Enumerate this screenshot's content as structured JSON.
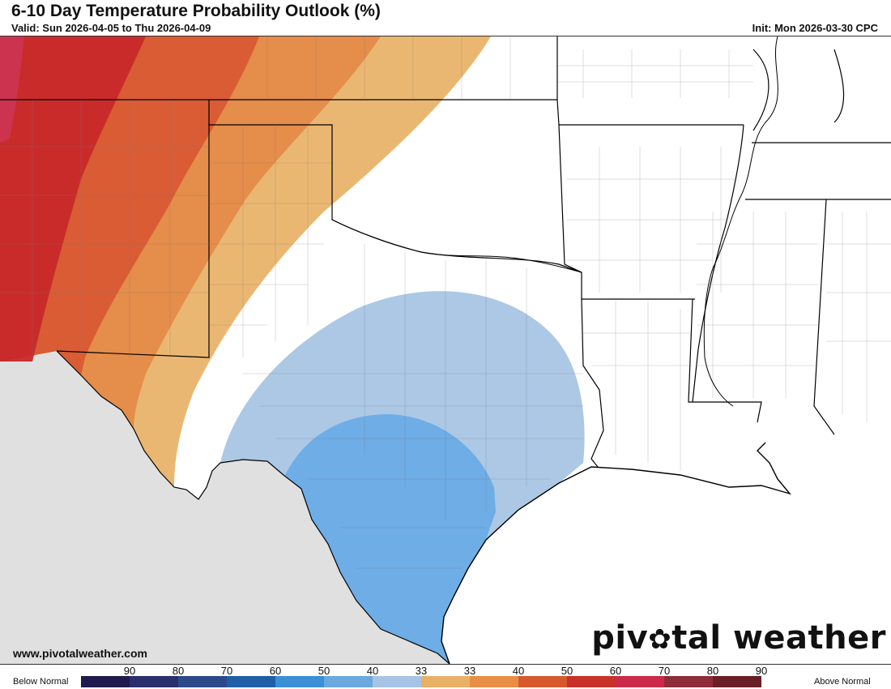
{
  "header": {
    "title": "6-10 Day Temperature Probability Outlook (%)",
    "valid": "Valid: Sun 2026-04-05 to Thu 2026-04-09",
    "init": "Init: Mon 2026-03-30 CPC"
  },
  "footer": {
    "site": "www.pivotalweather.com",
    "brand_left": "piv",
    "brand_right": "tal weather"
  },
  "legend": {
    "below_label": "Below Normal",
    "above_label": "Above Normal",
    "below_ticks": [
      "90",
      "80",
      "70",
      "60",
      "50",
      "40",
      "33"
    ],
    "above_ticks": [
      "33",
      "40",
      "50",
      "60",
      "70",
      "80",
      "90"
    ],
    "below_colors": [
      "#1e1a4d",
      "#2a2f6e",
      "#2c4a8a",
      "#1f5fa6",
      "#3a8fd6",
      "#6aa8e0",
      "#a7c4e6"
    ],
    "above_colors": [
      "#e8b066",
      "#e88e45",
      "#d65a2e",
      "#c83228",
      "#cc2a48",
      "#8e2c3a",
      "#6a1f26"
    ]
  },
  "map": {
    "colors": {
      "no_data": "#e0e0e0",
      "water": "#ffffff",
      "above_70": "#c8282a",
      "above_60": "#d85a33",
      "above_50": "#e58a48",
      "above_40": "#e9b36a",
      "below_40": "#6aace6",
      "below_33": "#a4c2e2",
      "borders": "#000000"
    }
  }
}
